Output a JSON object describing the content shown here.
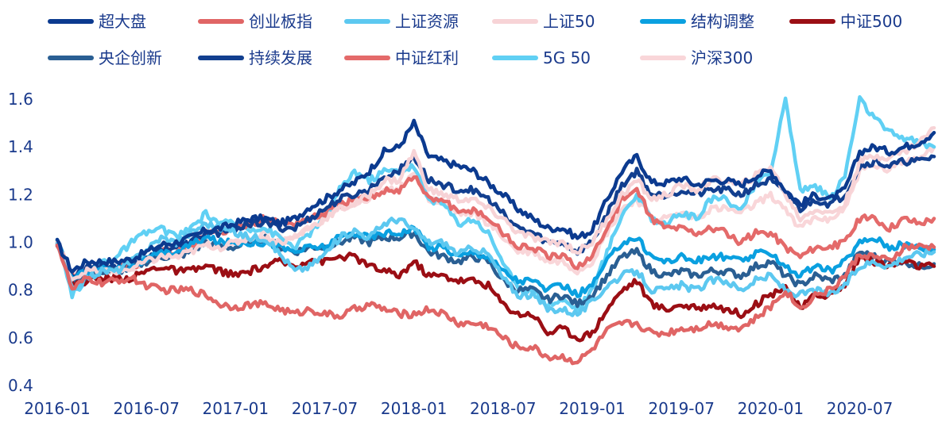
{
  "chart_data": {
    "type": "line",
    "title": "",
    "xlabel": "",
    "ylabel": "",
    "ylim": [
      0.4,
      1.7
    ],
    "yticks": [
      0.4,
      0.6,
      0.8,
      1.0,
      1.2,
      1.4,
      1.6
    ],
    "ytick_labels": [
      "0.4",
      "0.6",
      "0.8",
      "1.0",
      "1.2",
      "1.4",
      "1.6"
    ],
    "xlim": [
      "2016-01",
      "2020-12"
    ],
    "xticks": [
      "2016-01",
      "2016-07",
      "2017-01",
      "2017-07",
      "2018-01",
      "2018-07",
      "2019-01",
      "2019-07",
      "2020-01",
      "2020-07"
    ],
    "legend_position": "top",
    "grid": false,
    "dates": [
      "2016-01",
      "2016-02",
      "2016-03",
      "2016-04",
      "2016-05",
      "2016-06",
      "2016-07",
      "2016-08",
      "2016-09",
      "2016-10",
      "2016-11",
      "2016-12",
      "2017-01",
      "2017-02",
      "2017-03",
      "2017-04",
      "2017-05",
      "2017-06",
      "2017-07",
      "2017-08",
      "2017-09",
      "2017-10",
      "2017-11",
      "2017-12",
      "2018-01",
      "2018-02",
      "2018-03",
      "2018-04",
      "2018-05",
      "2018-06",
      "2018-07",
      "2018-08",
      "2018-09",
      "2018-10",
      "2018-11",
      "2018-12",
      "2019-01",
      "2019-02",
      "2019-03",
      "2019-04",
      "2019-05",
      "2019-06",
      "2019-07",
      "2019-08",
      "2019-09",
      "2019-10",
      "2019-11",
      "2019-12",
      "2020-01",
      "2020-02",
      "2020-03",
      "2020-04",
      "2020-05",
      "2020-06",
      "2020-07",
      "2020-08",
      "2020-09",
      "2020-10",
      "2020-11",
      "2020-12"
    ],
    "series": [
      {
        "name": "超大盘",
        "color": "#0b3a8f",
        "values": [
          1.0,
          0.88,
          0.92,
          0.92,
          0.92,
          0.93,
          0.96,
          0.99,
          1.0,
          1.02,
          1.05,
          1.06,
          1.08,
          1.1,
          1.1,
          1.08,
          1.1,
          1.15,
          1.18,
          1.22,
          1.25,
          1.3,
          1.38,
          1.4,
          1.5,
          1.36,
          1.34,
          1.32,
          1.3,
          1.25,
          1.2,
          1.14,
          1.1,
          1.06,
          1.06,
          1.02,
          1.05,
          1.18,
          1.3,
          1.36,
          1.25,
          1.25,
          1.27,
          1.24,
          1.26,
          1.26,
          1.24,
          1.28,
          1.3,
          1.22,
          1.16,
          1.2,
          1.18,
          1.22,
          1.38,
          1.4,
          1.38,
          1.4,
          1.42,
          1.46
        ]
      },
      {
        "name": "创业板指",
        "color": "#e06565",
        "values": [
          1.0,
          0.8,
          0.85,
          0.83,
          0.84,
          0.85,
          0.82,
          0.8,
          0.8,
          0.8,
          0.78,
          0.74,
          0.73,
          0.74,
          0.74,
          0.72,
          0.7,
          0.72,
          0.7,
          0.69,
          0.72,
          0.74,
          0.72,
          0.7,
          0.7,
          0.72,
          0.7,
          0.66,
          0.66,
          0.65,
          0.6,
          0.56,
          0.56,
          0.52,
          0.52,
          0.5,
          0.55,
          0.63,
          0.66,
          0.66,
          0.62,
          0.62,
          0.64,
          0.64,
          0.66,
          0.65,
          0.64,
          0.68,
          0.73,
          0.8,
          0.72,
          0.78,
          0.8,
          0.86,
          0.95,
          0.94,
          0.92,
          0.98,
          0.98,
          0.98
        ]
      },
      {
        "name": "上证资源",
        "color": "#5cc8f0",
        "values": [
          1.0,
          0.8,
          0.85,
          0.88,
          0.88,
          0.92,
          0.97,
          1.02,
          1.0,
          1.04,
          1.08,
          1.06,
          1.04,
          1.02,
          1.02,
          0.95,
          0.88,
          0.9,
          0.95,
          1.02,
          1.05,
          1.02,
          1.08,
          1.1,
          1.05,
          1.0,
          1.0,
          0.95,
          0.98,
          0.95,
          0.85,
          0.78,
          0.78,
          0.72,
          0.72,
          0.7,
          0.75,
          0.82,
          0.86,
          0.88,
          0.8,
          0.8,
          0.82,
          0.8,
          0.84,
          0.84,
          0.8,
          0.84,
          0.86,
          0.8,
          0.78,
          0.8,
          0.78,
          0.82,
          0.9,
          0.92,
          0.9,
          0.94,
          0.95,
          0.96
        ]
      },
      {
        "name": "上证50",
        "color": "#f7d3d6",
        "values": [
          1.0,
          0.85,
          0.88,
          0.88,
          0.88,
          0.89,
          0.92,
          0.94,
          0.94,
          0.96,
          0.99,
          0.98,
          1.0,
          1.02,
          1.02,
          1.0,
          1.02,
          1.06,
          1.1,
          1.14,
          1.16,
          1.2,
          1.26,
          1.26,
          1.38,
          1.22,
          1.2,
          1.18,
          1.18,
          1.14,
          1.1,
          1.04,
          1.02,
          1.0,
          1.0,
          0.96,
          1.0,
          1.1,
          1.2,
          1.26,
          1.18,
          1.2,
          1.24,
          1.22,
          1.26,
          1.26,
          1.24,
          1.28,
          1.32,
          1.2,
          1.1,
          1.14,
          1.12,
          1.16,
          1.34,
          1.36,
          1.36,
          1.38,
          1.42,
          1.48
        ]
      },
      {
        "name": "结构调整",
        "color": "#0aa0e0",
        "values": [
          1.0,
          0.85,
          0.88,
          0.89,
          0.89,
          0.9,
          0.93,
          0.95,
          0.96,
          0.99,
          1.02,
          1.0,
          1.0,
          1.0,
          1.0,
          0.98,
          0.96,
          0.98,
          0.98,
          1.02,
          1.04,
          1.02,
          1.04,
          1.04,
          1.06,
          0.98,
          0.98,
          0.94,
          0.96,
          0.94,
          0.88,
          0.84,
          0.84,
          0.8,
          0.82,
          0.78,
          0.82,
          0.92,
          1.0,
          1.02,
          0.94,
          0.92,
          0.94,
          0.92,
          0.94,
          0.94,
          0.92,
          0.95,
          0.96,
          0.9,
          0.86,
          0.9,
          0.88,
          0.92,
          1.0,
          1.02,
          0.98,
          0.99,
          0.98,
          0.97
        ]
      },
      {
        "name": "中证500",
        "color": "#9b0e14",
        "values": [
          1.0,
          0.82,
          0.84,
          0.85,
          0.85,
          0.85,
          0.88,
          0.9,
          0.88,
          0.88,
          0.9,
          0.88,
          0.86,
          0.88,
          0.9,
          0.92,
          0.9,
          0.93,
          0.92,
          0.94,
          0.94,
          0.9,
          0.88,
          0.86,
          0.92,
          0.86,
          0.86,
          0.84,
          0.84,
          0.82,
          0.74,
          0.7,
          0.7,
          0.62,
          0.64,
          0.6,
          0.62,
          0.72,
          0.8,
          0.84,
          0.74,
          0.72,
          0.74,
          0.72,
          0.74,
          0.72,
          0.7,
          0.74,
          0.78,
          0.82,
          0.72,
          0.78,
          0.78,
          0.82,
          0.94,
          0.92,
          0.9,
          0.92,
          0.9,
          0.9
        ]
      },
      {
        "name": "央企创新",
        "color": "#2a5f93",
        "values": [
          1.0,
          0.84,
          0.86,
          0.88,
          0.88,
          0.89,
          0.92,
          0.94,
          0.94,
          0.96,
          1.0,
          0.98,
          0.98,
          1.0,
          1.02,
          0.98,
          0.96,
          0.98,
          0.98,
          1.0,
          1.02,
          1.0,
          1.02,
          1.02,
          1.04,
          0.96,
          0.94,
          0.92,
          0.94,
          0.92,
          0.84,
          0.8,
          0.8,
          0.76,
          0.78,
          0.74,
          0.78,
          0.86,
          0.94,
          0.96,
          0.88,
          0.86,
          0.88,
          0.86,
          0.88,
          0.88,
          0.86,
          0.9,
          0.92,
          0.86,
          0.82,
          0.86,
          0.84,
          0.86,
          0.96,
          0.94,
          0.92,
          0.92,
          0.9,
          0.91
        ]
      },
      {
        "name": "持续发展",
        "color": "#123f8f",
        "values": [
          1.0,
          0.86,
          0.9,
          0.9,
          0.9,
          0.91,
          0.94,
          0.97,
          0.98,
          1.0,
          1.04,
          1.04,
          1.06,
          1.08,
          1.08,
          1.06,
          1.06,
          1.1,
          1.14,
          1.18,
          1.2,
          1.22,
          1.28,
          1.3,
          1.36,
          1.26,
          1.24,
          1.22,
          1.22,
          1.18,
          1.12,
          1.06,
          1.04,
          1.0,
          1.0,
          0.96,
          1.0,
          1.12,
          1.24,
          1.3,
          1.2,
          1.2,
          1.22,
          1.2,
          1.22,
          1.22,
          1.2,
          1.24,
          1.26,
          1.2,
          1.14,
          1.18,
          1.16,
          1.2,
          1.32,
          1.34,
          1.32,
          1.34,
          1.34,
          1.36
        ]
      },
      {
        "name": "中证红利",
        "color": "#e46a6a",
        "values": [
          1.0,
          0.86,
          0.88,
          0.88,
          0.9,
          0.9,
          0.92,
          0.96,
          0.96,
          0.98,
          1.04,
          1.04,
          1.06,
          1.08,
          1.1,
          1.08,
          1.08,
          1.1,
          1.12,
          1.16,
          1.18,
          1.18,
          1.22,
          1.22,
          1.28,
          1.18,
          1.18,
          1.12,
          1.14,
          1.1,
          1.04,
          0.98,
          0.98,
          0.94,
          0.94,
          0.9,
          0.94,
          1.06,
          1.18,
          1.22,
          1.1,
          1.06,
          1.06,
          1.04,
          1.06,
          1.04,
          1.0,
          1.04,
          1.04,
          0.98,
          0.94,
          0.98,
          0.98,
          1.0,
          1.1,
          1.1,
          1.06,
          1.1,
          1.08,
          1.1
        ]
      },
      {
        "name": "5G 50",
        "color": "#60d0f4",
        "values": [
          1.0,
          0.78,
          0.85,
          0.92,
          0.94,
          1.0,
          1.04,
          1.06,
          1.02,
          1.06,
          1.12,
          1.08,
          1.08,
          1.06,
          1.06,
          1.02,
          0.98,
          1.04,
          1.1,
          1.22,
          1.3,
          1.26,
          1.3,
          1.3,
          1.32,
          1.18,
          1.16,
          1.08,
          1.1,
          1.04,
          0.92,
          0.8,
          0.8,
          0.74,
          0.76,
          0.72,
          0.8,
          0.96,
          1.12,
          1.2,
          1.1,
          1.08,
          1.12,
          1.1,
          1.18,
          1.18,
          1.14,
          1.24,
          1.3,
          1.6,
          1.22,
          1.24,
          1.18,
          1.28,
          1.6,
          1.52,
          1.46,
          1.44,
          1.42,
          1.4
        ]
      },
      {
        "name": "沪深300",
        "color": "#f9d6d9",
        "values": [
          1.0,
          0.86,
          0.88,
          0.88,
          0.88,
          0.89,
          0.92,
          0.94,
          0.94,
          0.96,
          1.0,
          0.98,
          1.0,
          1.02,
          1.04,
          1.02,
          1.02,
          1.06,
          1.1,
          1.14,
          1.16,
          1.18,
          1.22,
          1.22,
          1.3,
          1.18,
          1.16,
          1.12,
          1.12,
          1.08,
          1.02,
          0.96,
          0.96,
          0.92,
          0.92,
          0.88,
          0.92,
          1.04,
          1.14,
          1.18,
          1.1,
          1.1,
          1.12,
          1.1,
          1.14,
          1.14,
          1.12,
          1.16,
          1.2,
          1.14,
          1.06,
          1.1,
          1.1,
          1.14,
          1.3,
          1.32,
          1.3,
          1.34,
          1.36,
          1.4
        ]
      }
    ]
  }
}
